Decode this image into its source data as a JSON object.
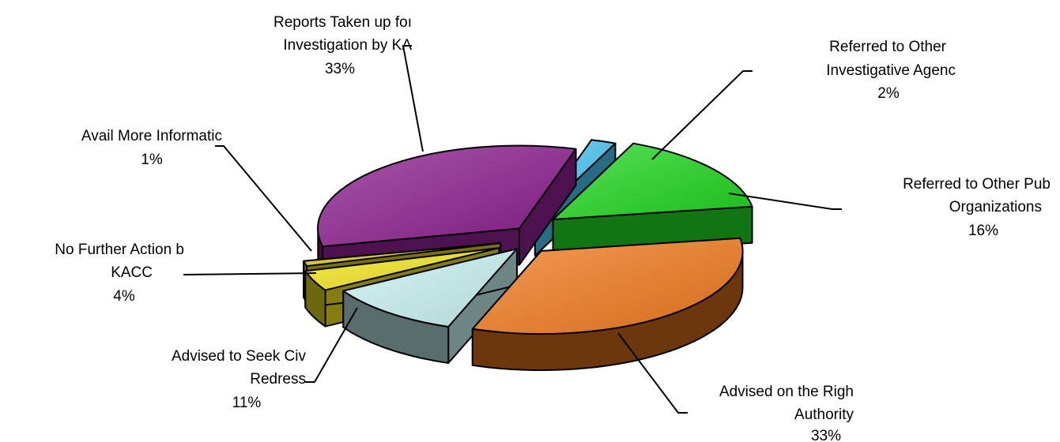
{
  "chart_data": {
    "type": "pie",
    "style": "3d-exploded",
    "title": "",
    "legend": "none",
    "slices": [
      {
        "name": "reports-taken-up",
        "label_lines": [
          "Reports Taken up foı",
          "Investigation by KA"
        ],
        "pct_label": "33%",
        "value": 33,
        "color": "#8B1E8E"
      },
      {
        "name": "referred-investigative",
        "label_lines": [
          "Referred to Other",
          "Investigative Agenc"
        ],
        "pct_label": "2%",
        "value": 2,
        "color": "#47C3F2"
      },
      {
        "name": "referred-public",
        "label_lines": [
          "Referred to Other Pub",
          "Organizations"
        ],
        "pct_label": "16%",
        "value": 16,
        "color": "#1FD61F"
      },
      {
        "name": "advised-right-authority",
        "label_lines": [
          "Advised on the Righ",
          "Authority"
        ],
        "pct_label": "33%",
        "value": 33,
        "color": "#F07A1E"
      },
      {
        "name": "advised-civil-redress",
        "label_lines": [
          "Advised to Seek Civ",
          "Redress"
        ],
        "pct_label": "11%",
        "value": 11,
        "color": "#C8F2F2"
      },
      {
        "name": "no-further-action",
        "label_lines": [
          "No Further Action b",
          "KACC"
        ],
        "pct_label": "4%",
        "value": 4,
        "color": "#F2E41E"
      },
      {
        "name": "avail-more-info",
        "label_lines": [
          "Avail More Informatic"
        ],
        "pct_label": "1%",
        "value": 1,
        "color": "#DCC81E"
      }
    ]
  }
}
